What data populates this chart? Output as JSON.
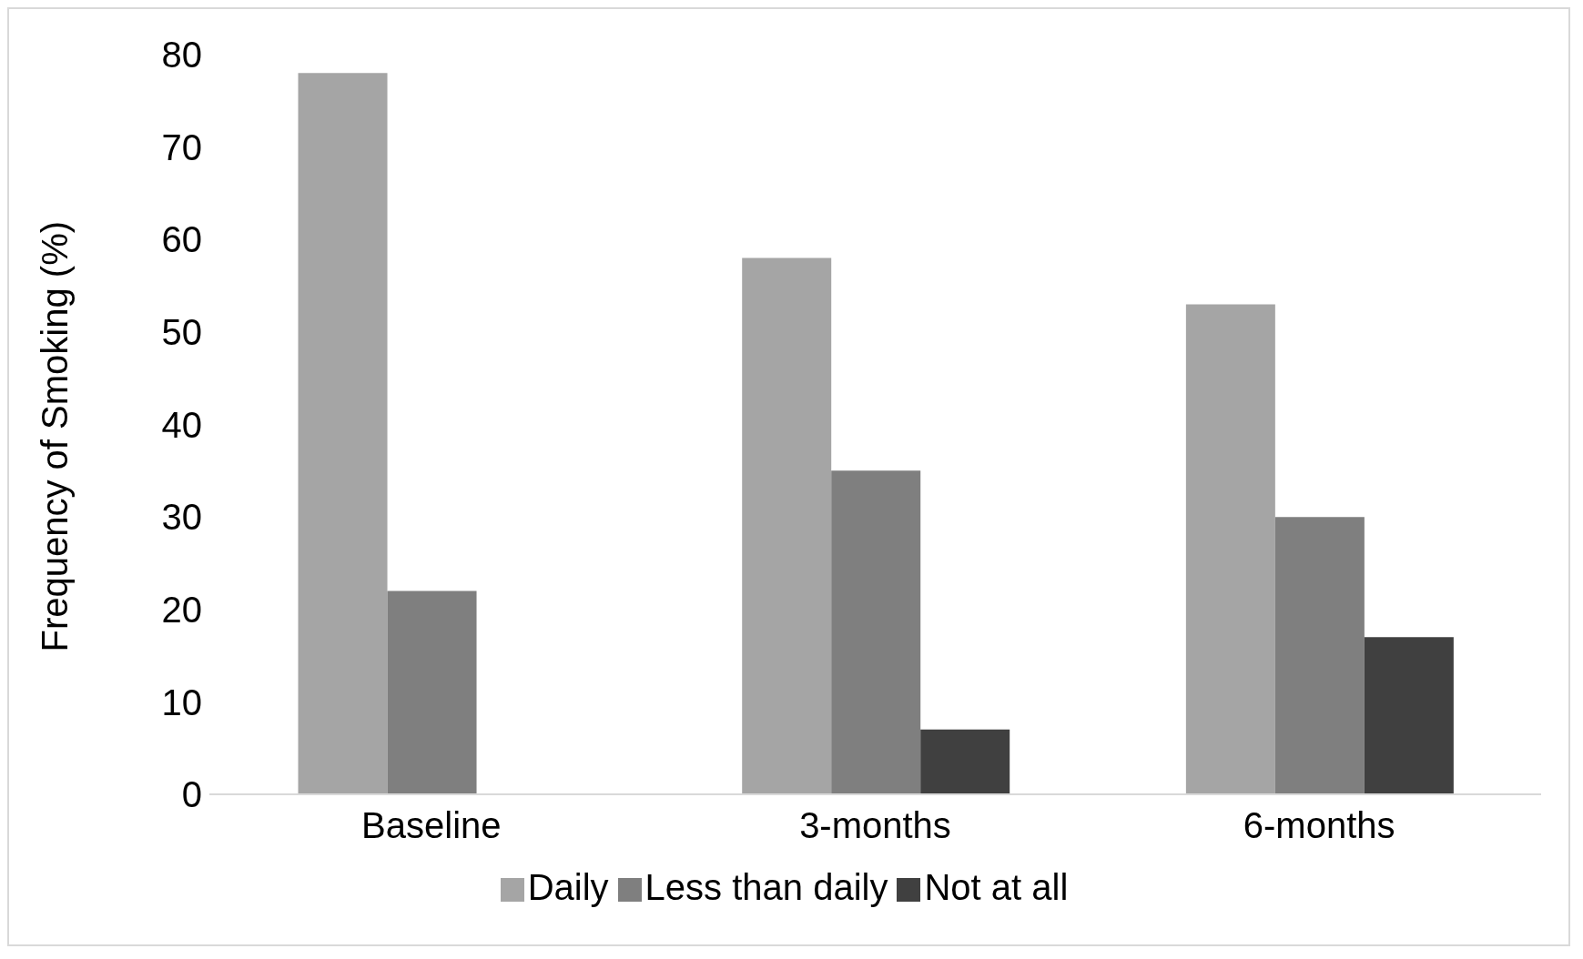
{
  "chart_data": {
    "type": "bar",
    "ylabel": "Frequency of Smoking (%)",
    "categories": [
      "Baseline",
      "3-months",
      "6-months"
    ],
    "series": [
      {
        "name": "Daily",
        "color": "#a5a5a5",
        "values": [
          78,
          58,
          53
        ]
      },
      {
        "name": "Less than daily",
        "color": "#7f7f7f",
        "values": [
          22,
          35,
          30
        ]
      },
      {
        "name": "Not at all",
        "color": "#404040",
        "values": [
          0,
          7,
          17
        ]
      }
    ],
    "ylim": [
      0,
      80
    ],
    "yticks": [
      0,
      10,
      20,
      30,
      40,
      50,
      60,
      70,
      80
    ],
    "grid": false,
    "legend": "bottom"
  }
}
